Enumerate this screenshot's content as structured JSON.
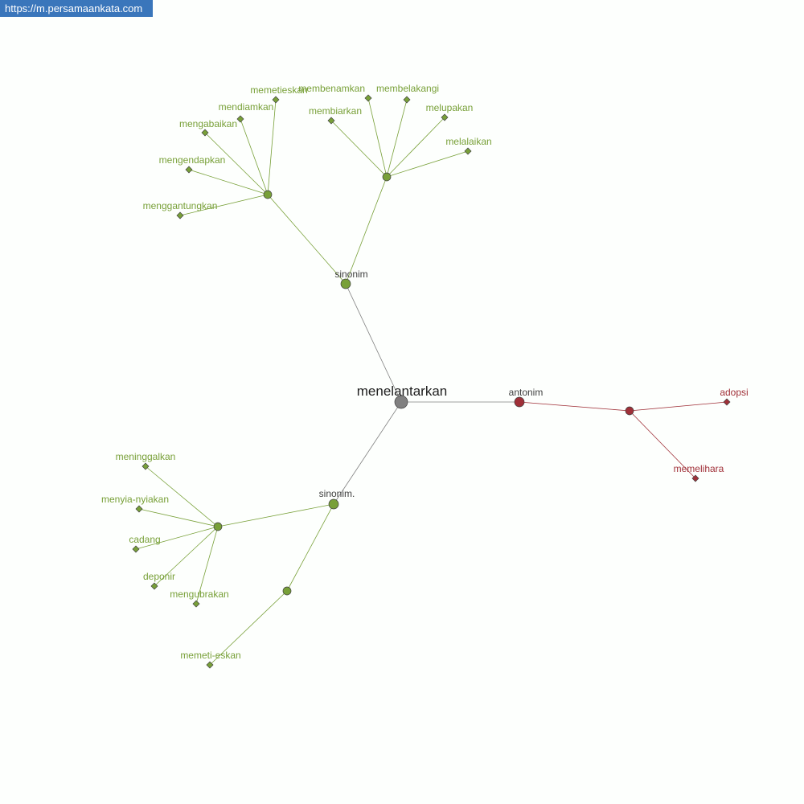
{
  "site_url": "https://m.persamaankata.com",
  "colors": {
    "synonym": "#78a038",
    "antonym": "#a03038",
    "root": "#808080",
    "category_text": "#404040",
    "banner": "#3a76bb"
  },
  "graph": {
    "root": "menelantarkan",
    "categories": {
      "sinonim_1": "sinonim",
      "sinonim_2": "sinonim.",
      "antonim": "antonim"
    },
    "words": {
      "memetieskan": "memetieskan",
      "mendiamkan": "mendiamkan",
      "mengabaikan": "mengabaikan",
      "mengendapkan": "mengendapkan",
      "menggantungkan": "menggantungkan",
      "membenamkan": "membenamkan",
      "membelakangi": "membelakangi",
      "membiarkan": "membiarkan",
      "melupakan": "melupakan",
      "melalaikan": "melalaikan",
      "meninggalkan": "meninggalkan",
      "menyia_nyiakan": "menyia-nyiakan",
      "cadang": "cadang",
      "deponir": "deponir",
      "mengubrakan": "mengubrakan",
      "memeti_eskan": "memeti-eskan",
      "adopsi": "adopsi",
      "memelihara": "memelihara"
    }
  }
}
